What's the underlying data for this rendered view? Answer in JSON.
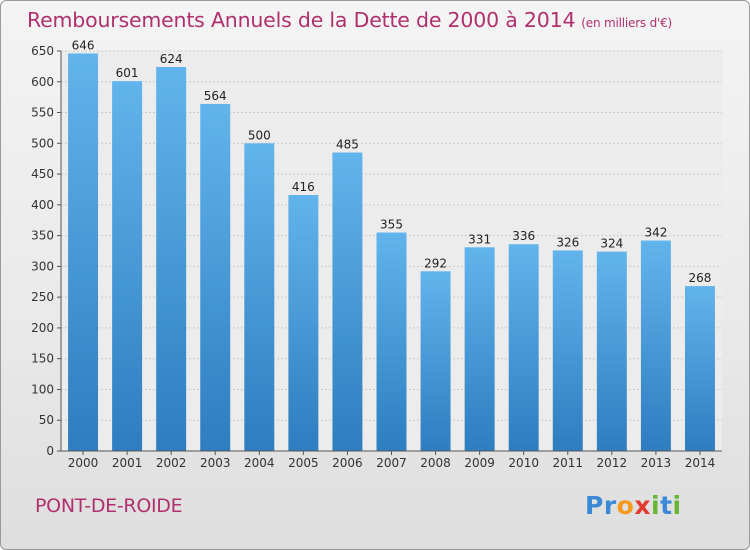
{
  "header": {
    "title": "Remboursements Annuels de la Dette de 2000 à 2014",
    "unit": "(en milliers d'€)"
  },
  "footer": {
    "commune": "PONT-DE-ROIDE",
    "brand_letters": [
      "P",
      "r",
      "o",
      "x",
      "i",
      "t",
      "i"
    ]
  },
  "colors": {
    "title": "#b0306e",
    "bar_top": "#62b4ec",
    "bar_bottom": "#2d7dc0",
    "brand": [
      "#3a88d6",
      "#3a88d6",
      "#f59a1c",
      "#e23a2e",
      "#66b533",
      "#3a88d6",
      "#66b533"
    ]
  },
  "chart_data": {
    "type": "bar",
    "title": "Remboursements Annuels de la Dette de 2000 à 2014",
    "ylabel": "en milliers d'€",
    "xlabel": "",
    "categories": [
      "2000",
      "2001",
      "2002",
      "2003",
      "2004",
      "2005",
      "2006",
      "2007",
      "2008",
      "2009",
      "2010",
      "2011",
      "2012",
      "2013",
      "2014"
    ],
    "values": [
      646,
      601,
      624,
      564,
      500,
      416,
      485,
      355,
      292,
      331,
      336,
      326,
      324,
      342,
      268
    ],
    "ylim": [
      0,
      650
    ],
    "yticks": [
      0,
      50,
      100,
      150,
      200,
      250,
      300,
      350,
      400,
      450,
      500,
      550,
      600,
      650
    ],
    "grid": true,
    "legend": "none"
  }
}
